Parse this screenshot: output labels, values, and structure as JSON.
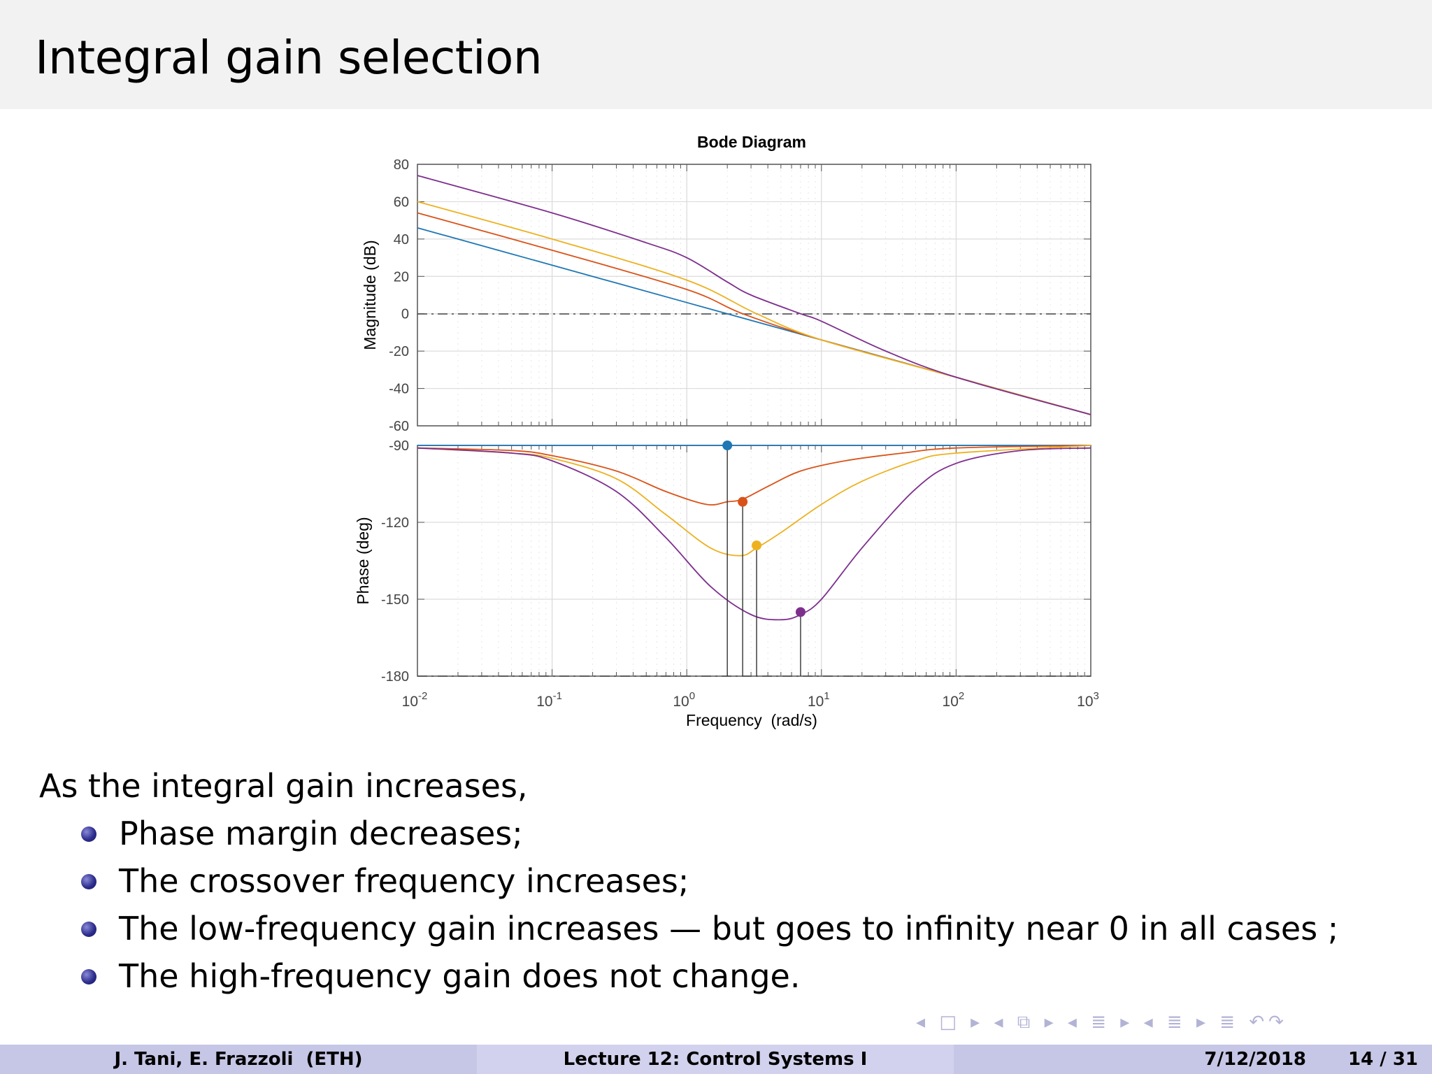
{
  "slide": {
    "title": "Integral gain selection"
  },
  "chart_data": {
    "type": "line",
    "title": "Bode Diagram",
    "xlabel": "Frequency  (rad/s)",
    "x_scale": "log",
    "xlim": [
      0.01,
      1000
    ],
    "x_ticks": [
      {
        "base": "10",
        "exp": "-2",
        "value": 0.01
      },
      {
        "base": "10",
        "exp": "-1",
        "value": 0.1
      },
      {
        "base": "10",
        "exp": "0",
        "value": 1
      },
      {
        "base": "10",
        "exp": "1",
        "value": 10
      },
      {
        "base": "10",
        "exp": "2",
        "value": 100
      },
      {
        "base": "10",
        "exp": "3",
        "value": 1000
      }
    ],
    "grid": true,
    "magnitude": {
      "ylabel": "Magnitude (dB)",
      "ylim": [
        -60,
        80
      ],
      "yticks": [
        "80",
        "60",
        "40",
        "20",
        "0",
        "-20",
        "-40",
        "-60"
      ]
    },
    "phase": {
      "ylabel": "Phase (deg)",
      "ylim": [
        -180,
        -90
      ],
      "yticks": [
        "-90",
        "-120",
        "-150",
        "-180"
      ]
    },
    "series": [
      {
        "color": "#1f77b4",
        "magnitude": {
          "x": [
            0.01,
            0.1,
            1,
            2,
            10,
            100,
            1000
          ],
          "y": [
            46,
            26,
            6,
            0,
            -14,
            -34,
            -54
          ]
        },
        "phase": {
          "x": [
            0.01,
            1000
          ],
          "y": [
            -90,
            -90
          ]
        },
        "margin_marker": {
          "x": 2.0,
          "y": -90
        }
      },
      {
        "color": "#d95319",
        "magnitude": {
          "x": [
            0.01,
            0.1,
            1,
            2.6,
            10,
            100,
            1000
          ],
          "y": [
            54,
            34,
            13,
            0,
            -14,
            -34,
            -54
          ]
        },
        "phase": {
          "x": [
            0.01,
            0.05,
            0.1,
            0.3,
            0.7,
            1.4,
            2,
            2.6,
            4,
            7,
            15,
            40,
            100,
            1000
          ],
          "y": [
            -91,
            -92,
            -94,
            -100,
            -108,
            -113,
            -112,
            -111,
            -106,
            -100,
            -96,
            -93,
            -91,
            -90
          ]
        },
        "margin_marker": {
          "x": 2.6,
          "y": -112
        }
      },
      {
        "color": "#edb120",
        "magnitude": {
          "x": [
            0.01,
            0.1,
            1,
            3.3,
            10,
            100,
            1000
          ],
          "y": [
            60,
            40,
            18,
            0,
            -14,
            -34,
            -54
          ]
        },
        "phase": {
          "x": [
            0.01,
            0.05,
            0.1,
            0.3,
            0.7,
            1.5,
            2.5,
            3.3,
            5,
            10,
            20,
            50,
            100,
            1000
          ],
          "y": [
            -91,
            -93,
            -95,
            -103,
            -117,
            -130,
            -133,
            -130,
            -124,
            -113,
            -104,
            -96,
            -93,
            -90
          ]
        },
        "margin_marker": {
          "x": 3.3,
          "y": -129
        }
      },
      {
        "color": "#7e2f8e",
        "magnitude": {
          "x": [
            0.01,
            0.1,
            0.5,
            1,
            2,
            3,
            7,
            10,
            30,
            100,
            1000
          ],
          "y": [
            74,
            54,
            38,
            30,
            17,
            10,
            0,
            -4,
            -20,
            -34,
            -54
          ]
        },
        "phase": {
          "x": [
            0.01,
            0.05,
            0.1,
            0.3,
            0.7,
            1.5,
            3,
            5,
            7,
            10,
            20,
            50,
            100,
            300,
            1000
          ],
          "y": [
            -91,
            -93,
            -96,
            -108,
            -126,
            -145,
            -156,
            -158,
            -156,
            -150,
            -130,
            -107,
            -97,
            -92,
            -91
          ]
        },
        "margin_marker": {
          "x": 7.0,
          "y": -155
        }
      }
    ]
  },
  "body": {
    "intro": "As the integral gain increases,",
    "bullets": [
      "Phase margin decreases;",
      "The crossover frequency increases;",
      "The low-frequency gain increases — but goes to infinity near 0 in all cases ;",
      "The high-frequency gain does not change."
    ]
  },
  "nav": {
    "icons": "◂ □ ▸  ◂ ⧉ ▸  ◂ ≣ ▸  ◂ ≣ ▸   ≣   ↶↷"
  },
  "footer": {
    "authors": "J. Tani, E. Frazzoli  (ETH)",
    "lecture": "Lecture 12: Control Systems I",
    "date": "7/12/2018",
    "page": "14 / 31"
  }
}
